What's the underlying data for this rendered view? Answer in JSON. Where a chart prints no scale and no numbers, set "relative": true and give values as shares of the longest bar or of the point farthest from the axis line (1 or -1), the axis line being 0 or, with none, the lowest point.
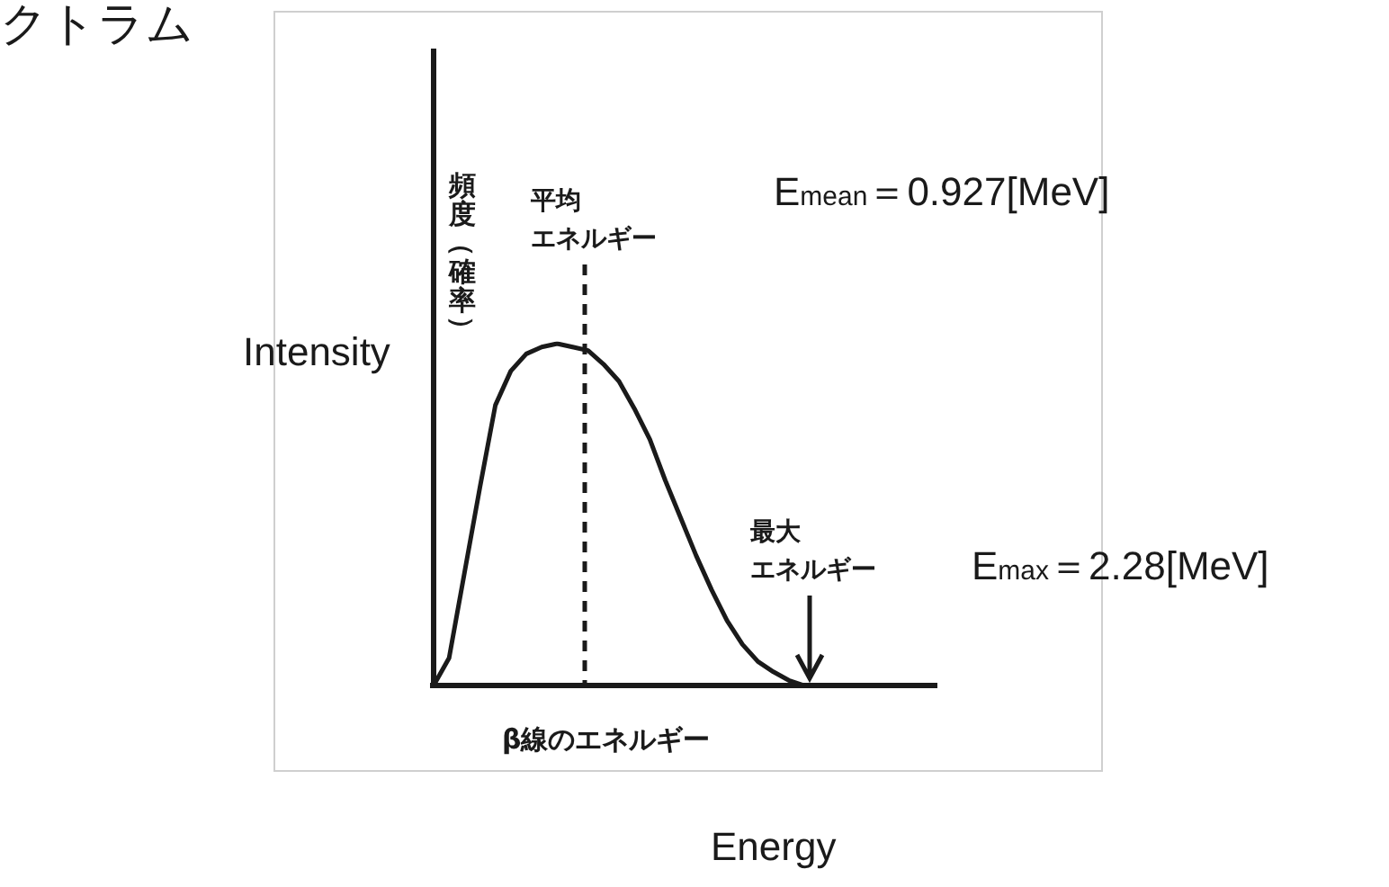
{
  "chart_data": {
    "type": "line",
    "title": "クトラム",
    "xlabel": "β線のエネルギー",
    "ylabel": "頻度（確率）",
    "relative": true,
    "categories": [
      null,
      null,
      null,
      null,
      null,
      null,
      null,
      null,
      null,
      null,
      null,
      null,
      null,
      null,
      null,
      null,
      null,
      null,
      null,
      null,
      null,
      null,
      null,
      null,
      null
    ],
    "series": [
      {
        "color": "#1a1a1a",
        "values": [
          0,
          0.08,
          0.33,
          0.58,
          0.82,
          0.92,
          0.97,
          0.99,
          1,
          0.99,
          0.98,
          0.94,
          0.89,
          0.81,
          0.72,
          0.6,
          0.49,
          0.38,
          0.28,
          0.19,
          0.12,
          0.07,
          0.04,
          0.015,
          0
        ]
      }
    ],
    "legend": false,
    "marker": "none",
    "line_style": "solid",
    "annotations": [
      "平均エネルギー",
      "E$_{mean}$＝0.927[MeV]",
      "最大エネルギー",
      "E$_{max}$＝2.28[MeV]",
      "Intensity",
      "Energy"
    ]
  }
}
